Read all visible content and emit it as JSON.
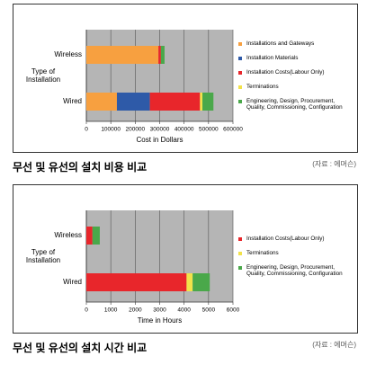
{
  "chart_data": [
    {
      "type": "bar",
      "orientation": "horizontal",
      "stacked": true,
      "caption": "무선 및 유선의 설치 비용 비교",
      "source": "(자료 : 에머슨)",
      "xlabel": "Cost in Dollars",
      "ylabel": "Type of Installation",
      "categories": [
        "Wireless",
        "Wired"
      ],
      "xlim": [
        0,
        600000
      ],
      "xticks": [
        0,
        100000,
        200000,
        300000,
        400000,
        500000,
        600000
      ],
      "grid": true,
      "legend": "right",
      "series": [
        {
          "name": "Installations and Gateways",
          "color": "#f7a040",
          "values": [
            295000,
            125000
          ]
        },
        {
          "name": "Installation Materials",
          "color": "#2e5aa8",
          "values": [
            0,
            135000
          ]
        },
        {
          "name": "Installation Costs(Labour Only)",
          "color": "#e8262b",
          "values": [
            10000,
            205000
          ]
        },
        {
          "name": "Terminations",
          "color": "#f2e24a",
          "values": [
            0,
            10000
          ]
        },
        {
          "name": "Engineering, Design, Procurement, Quality, Commissioning, Configuration",
          "color": "#4aa84a",
          "values": [
            15000,
            45000
          ]
        }
      ]
    },
    {
      "type": "bar",
      "orientation": "horizontal",
      "stacked": true,
      "caption": "무선 및 유선의 설치 시간 비교",
      "source": "(자료 : 에머슨)",
      "xlabel": "Time in Hours",
      "ylabel": "Type of Installation",
      "categories": [
        "Wireless",
        "Wired"
      ],
      "xlim": [
        0,
        6000
      ],
      "xticks": [
        0,
        1000,
        2000,
        3000,
        4000,
        5000,
        6000
      ],
      "grid": true,
      "legend": "right",
      "series": [
        {
          "name": "Installation Costs(Labour Only)",
          "color": "#e8262b",
          "values": [
            250,
            4100
          ]
        },
        {
          "name": "Terminations",
          "color": "#f2e24a",
          "values": [
            0,
            250
          ]
        },
        {
          "name": "Engineering, Design, Procurement, Quality, Commissioning, Configuration",
          "color": "#4aa84a",
          "values": [
            300,
            700
          ]
        }
      ]
    }
  ]
}
